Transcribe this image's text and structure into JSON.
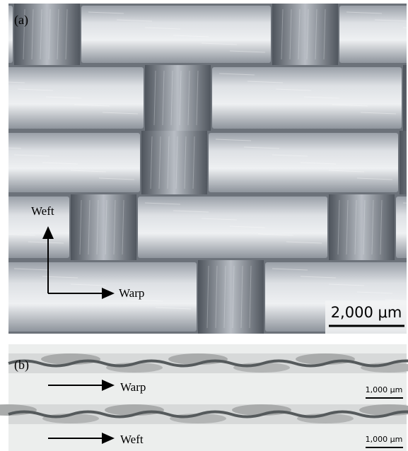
{
  "panel_a": {
    "label": "(a)",
    "arrow_up": "Weft",
    "arrow_right": "Warp",
    "scale_bar": "2,000 μm"
  },
  "panel_b": {
    "label": "(b)",
    "top": {
      "arrow": "Warp",
      "scale_bar": "1,000 μm"
    },
    "bottom": {
      "arrow": "Weft",
      "scale_bar": "1,000 μm"
    }
  }
}
